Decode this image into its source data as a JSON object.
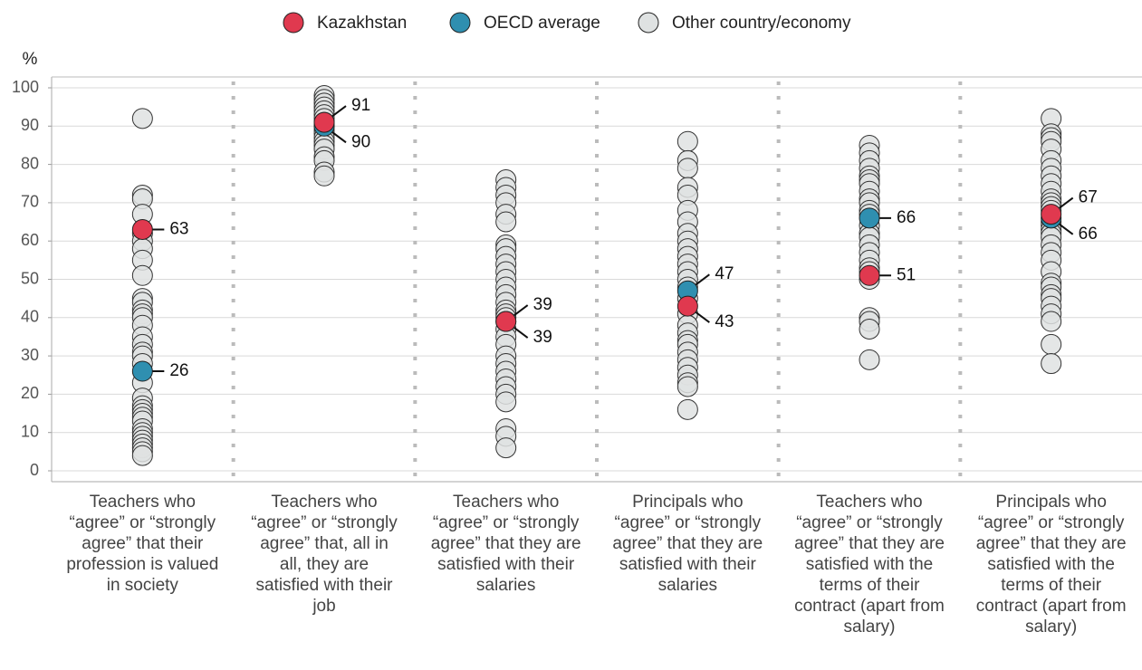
{
  "chart_data": {
    "type": "strip",
    "y_label": "%",
    "categories": [
      "Teachers who “agree” or “strongly agree” that their profession is valued in society",
      "Teachers who “agree” or “strongly agree” that, all in all, they are satisfied with their job",
      "Teachers who “agree” or “strongly agree” that they are satisfied with their salaries",
      "Principals who “agree” or “strongly agree” that they are satisfied with their salaries",
      "Teachers who “agree” or “strongly agree” that they are satisfied with the terms of their contract (apart from salary)",
      "Principals who “agree” or “strongly agree” that they are satisfied with the terms of their contract (apart from salary)"
    ],
    "ylim": [
      0,
      100
    ],
    "yticks": [
      0,
      10,
      20,
      30,
      40,
      50,
      60,
      70,
      80,
      90,
      100
    ],
    "grid": true,
    "legend": "top",
    "series": [
      {
        "name": "Kazakhstan",
        "color": "#e0394f",
        "values": [
          63,
          91,
          39,
          43,
          51,
          67
        ]
      },
      {
        "name": "OECD average",
        "color": "#2f8fb0",
        "values": [
          26,
          90,
          39,
          47,
          66,
          66
        ]
      },
      {
        "name": "Other country/economy",
        "color": "#dfe2e2",
        "values": [
          [
            92,
            72,
            71,
            67,
            62,
            60,
            58,
            55,
            51,
            45,
            44,
            42,
            41,
            40,
            38,
            35,
            33,
            31,
            30,
            28,
            23,
            19,
            17,
            16,
            15,
            14,
            13,
            11,
            10,
            9,
            8,
            7,
            6,
            5,
            4
          ],
          [
            98,
            97,
            96,
            95,
            94,
            93,
            92,
            91,
            90,
            89,
            88,
            87,
            86,
            85,
            84,
            82,
            81,
            78,
            77
          ],
          [
            76,
            74,
            72,
            70,
            67,
            65,
            59,
            58,
            56,
            54,
            52,
            50,
            48,
            46,
            44,
            42,
            41,
            40,
            37,
            35,
            33,
            30,
            28,
            26,
            24,
            22,
            20,
            18,
            11,
            9,
            6
          ],
          [
            86,
            81,
            79,
            74,
            72,
            68,
            65,
            62,
            60,
            58,
            56,
            54,
            52,
            50,
            48,
            45,
            41,
            38,
            36,
            34,
            33,
            31,
            29,
            27,
            25,
            23,
            22,
            16
          ],
          [
            85,
            83,
            81,
            79,
            77,
            76,
            75,
            73,
            71,
            70,
            68,
            67,
            64,
            62,
            61,
            59,
            57,
            55,
            53,
            52,
            50,
            40,
            39,
            37,
            29
          ],
          [
            92,
            88,
            87,
            86,
            84,
            81,
            79,
            77,
            75,
            73,
            71,
            70,
            69,
            68,
            65,
            64,
            63,
            62,
            61,
            59,
            57,
            55,
            52,
            49,
            48,
            46,
            45,
            43,
            41,
            39,
            33,
            28
          ]
        ]
      }
    ]
  }
}
